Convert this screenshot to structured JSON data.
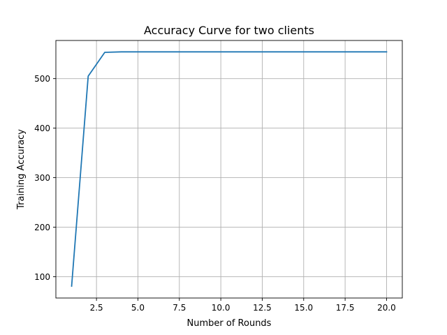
{
  "chart_data": {
    "type": "line",
    "title": "Accuracy Curve for two clients",
    "xlabel": "Number of Rounds",
    "ylabel": "Training Accuracy",
    "xlim": [
      0.05,
      20.95
    ],
    "ylim": [
      57,
      577
    ],
    "xticks": [
      2.5,
      5.0,
      7.5,
      10.0,
      12.5,
      15.0,
      17.5,
      20.0
    ],
    "xtick_labels": [
      "2.5",
      "5.0",
      "7.5",
      "10.0",
      "12.5",
      "15.0",
      "17.5",
      "20.0"
    ],
    "yticks": [
      100,
      200,
      300,
      400,
      500
    ],
    "ytick_labels": [
      "100",
      "200",
      "300",
      "400",
      "500"
    ],
    "grid": true,
    "series": [
      {
        "color": "#1f77b4",
        "x": [
          1,
          2,
          3,
          4,
          5,
          6,
          7,
          8,
          9,
          10,
          11,
          12,
          13,
          14,
          15,
          16,
          17,
          18,
          19,
          20
        ],
        "values": [
          81,
          505,
          553,
          554,
          554,
          554,
          554,
          554,
          554,
          554,
          554,
          554,
          554,
          554,
          554,
          554,
          554,
          554,
          554,
          554
        ]
      }
    ]
  }
}
